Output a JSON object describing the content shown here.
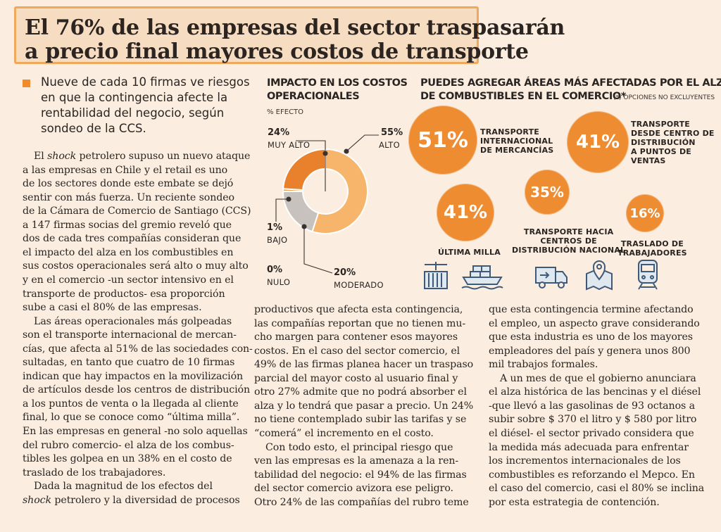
{
  "headline": {
    "line1": "El 76% de las empresas del sector traspasarán",
    "line2": "a precio final mayores costos de transporte"
  },
  "lead": {
    "lines": [
      "Nueve de cada 10 firmas ve riesgos",
      "en que la contingencia afecte la",
      "rentabilidad del negocio, según",
      "sondeo de la CCS."
    ]
  },
  "col1": {
    "lines": [
      "El shock petrolero supuso un nuevo ataque",
      "a las empresas en Chile y el retail es uno",
      "de los sectores donde este embate se dejó",
      "sentir con más fuerza. Un reciente sondeo",
      "de la Cámara de Comercio de Santiago (CCS)",
      "a 147 firmas socias del gremio reveló que",
      "dos de cada tres compañías consideran que",
      "el impacto del alza en los combustibles en",
      "sus costos operacionales será alto o muy alto",
      "y en el comercio -un sector intensivo en el",
      "transporte de productos- esa proporción",
      "sube a casi el 80% de las empresas.",
      "Las áreas operacionales más golpeadas",
      "son el transporte internacional de mercan-",
      "cías, que afecta al 51% de las sociedades con-",
      "sultadas, en tanto que cuatro de 10 firmas",
      "indican que hay impactos en la movilización",
      "de artículos desde los centros de distribución",
      "a los puntos de venta o la llegada al cliente",
      "final, lo que se conoce como “última milla”.",
      "En las empresas en general -no solo aquellas",
      "del rubro comercio- el alza de los combus-",
      "tibles les golpea en un 38% en el costo de",
      "traslado de los trabajadores.",
      "Dada la magnitud de los efectos del",
      "shock petrolero y la diversidad de procesos"
    ]
  },
  "col2": {
    "lines": [
      "productivos que afecta esta contingencia,",
      "las compañías reportan que no tienen mu-",
      "cho margen para contener esos mayores",
      "costos. En el caso del sector comercio, el",
      "49% de las firmas planea hacer un traspaso",
      "parcial del mayor costo al usuario final y",
      "otro 27% admite que no podrá absorber el",
      "alza y lo tendrá que pasar a precio. Un 24%",
      "no tiene contemplado subir las tarifas y se",
      "“comerá” el incremento en el costo.",
      "Con todo esto, el principal riesgo que",
      "ven las empresas es la amenaza a la ren-",
      "tabilidad del negocio: el 94% de las firmas",
      "del sector comercio avizora ese peligro.",
      "Otro 24% de las compañías del rubro teme"
    ]
  },
  "col3": {
    "lines": [
      "que esta contingencia termine afectando",
      "el empleo, un aspecto grave considerando",
      "que esta industria es uno de los mayores",
      "empleadores del país y genera unos 800",
      "mil trabajos formales.",
      "A un mes de que el gobierno anunciara",
      "el alza histórica de las bencinas y el diésel",
      "-que llevó a las gasolinas de 93 octanos a",
      "subir sobre $ 370 el litro y $ 580 por litro",
      "el diésel- el sector privado considera que",
      "la medida más adecuada para enfrentar",
      "los incrementos internacionales de los",
      "combustibles es reforzando el Mepco. En",
      "el caso del comercio, casi el 80% se inclina",
      "por esta estrategia de contención."
    ]
  },
  "donut": {
    "title_line1": "IMPACTO EN LOS COSTOS",
    "title_line2": "OPERACIONALES",
    "subtitle": "% EFECTO",
    "segments": [
      {
        "label": "ALTO",
        "pct_text": "55%",
        "value": 55,
        "color": "#f6b56a"
      },
      {
        "label": "MODERADO",
        "pct_text": "20%",
        "value": 20,
        "color": "#c7c2bd"
      },
      {
        "label": "NULO",
        "pct_text": "0%",
        "value": 0,
        "color": "#9a9590"
      },
      {
        "label": "BAJO",
        "pct_text": "1%",
        "value": 1,
        "color": "#f3a04c"
      },
      {
        "label": "MUY ALTO",
        "pct_text": "24%",
        "value": 24,
        "color": "#e9802c"
      }
    ]
  },
  "areas": {
    "title_line1": "PUEDES AGREGAR ÁREAS MÁS AFECTADAS POR EL ALZA",
    "title_line2": "DE COMBUSTIBLES EN EL COMERCIO*",
    "note": "(*) OPCIONES NO EXCLUYENTES",
    "bubbles": [
      {
        "pct": "51%",
        "label_lines": [
          "TRANSPORTE",
          "INTERNACIONAL",
          "DE MERCANCÍAS"
        ]
      },
      {
        "pct": "41%",
        "label_lines": [
          "TRANSPORTE",
          "DESDE CENTRO DE",
          "DISTRIBUCIÓN",
          "A PUNTOS DE",
          "VENTAS"
        ]
      },
      {
        "pct": "35%",
        "label_lines": [
          "TRANSPORTE HACIA",
          "CENTROS DE",
          "DISTRIBUCIÓN NACIONAL"
        ]
      },
      {
        "pct": "41%",
        "label_lines": [
          "ÚLTIMA MILLA"
        ]
      },
      {
        "pct": "16%",
        "label_lines": [
          "TRASLADO DE",
          "TRABAJADORES"
        ]
      }
    ]
  },
  "colors": {
    "accent": "#f08a2c",
    "bubble": "#ee8c32",
    "background": "#fbeee0",
    "headline_border": "#f0a85a"
  },
  "icons": [
    "container-crane-icon",
    "cargo-ship-icon",
    "delivery-truck-icon",
    "map-pin-icon",
    "train-icon"
  ]
}
